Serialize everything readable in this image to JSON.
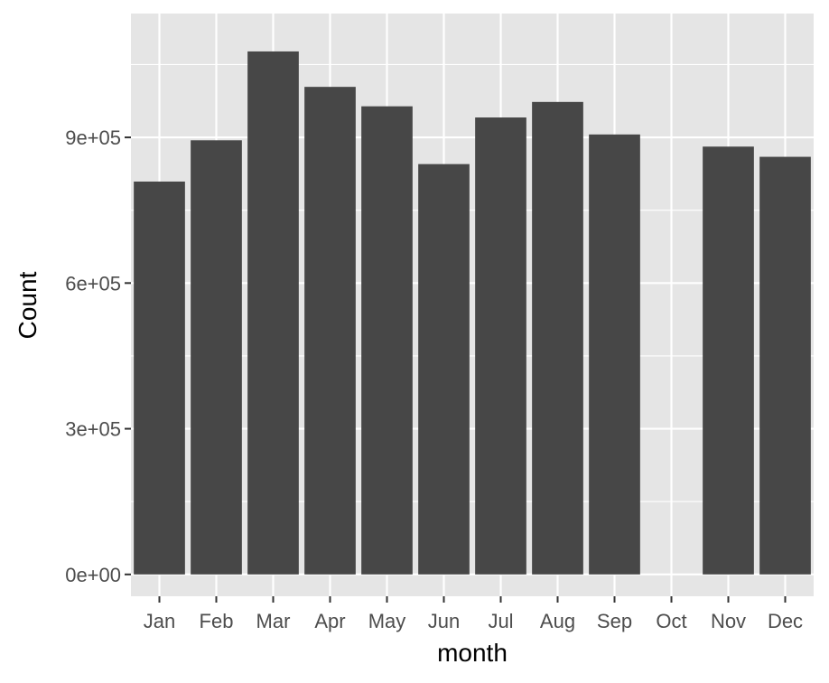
{
  "chart_data": {
    "type": "bar",
    "categories": [
      "Jan",
      "Feb",
      "Mar",
      "Apr",
      "May",
      "Jun",
      "Jul",
      "Aug",
      "Sep",
      "Oct",
      "Nov",
      "Dec"
    ],
    "values": [
      809000,
      894000,
      1077000,
      1004000,
      964000,
      845000,
      941000,
      973000,
      906000,
      0,
      881000,
      860000
    ],
    "xlabel": "month",
    "ylabel": "Count",
    "ylim": [
      -45000,
      1155000
    ],
    "yticks": [
      0,
      300000,
      600000,
      900000
    ],
    "ytick_labels": [
      "0e+00",
      "3e+05",
      "6e+05",
      "9e+05"
    ],
    "grid": true,
    "legend": "none",
    "colors": {
      "bar": "#474747",
      "panel": "#e5e5e5",
      "grid": "#ffffff"
    }
  }
}
